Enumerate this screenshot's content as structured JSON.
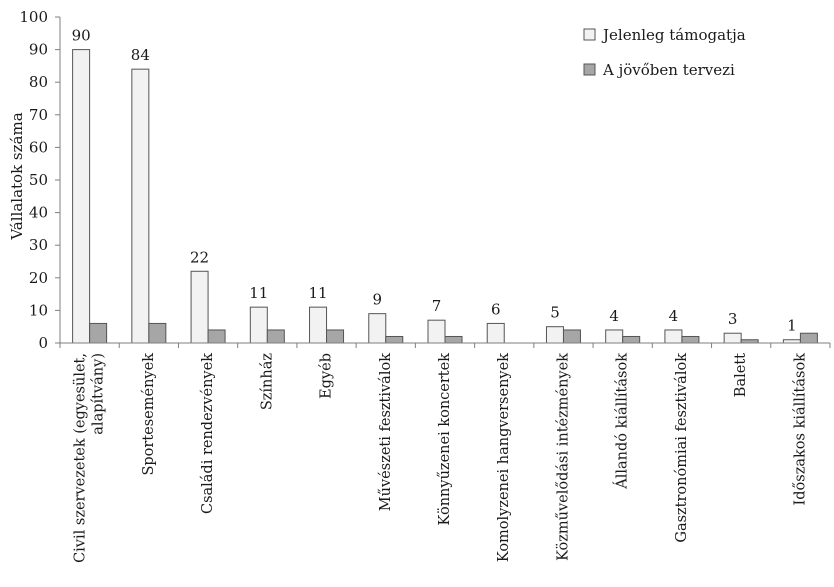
{
  "chart_data": {
    "type": "bar",
    "ylabel": "Vállalatok száma",
    "xlabel": "",
    "ylim": [
      0,
      100
    ],
    "yticks": [
      0,
      10,
      20,
      30,
      40,
      50,
      60,
      70,
      80,
      90,
      100
    ],
    "grid": false,
    "legend_position": "top-right",
    "categories": [
      [
        "Civil szervezetek (egyesület,",
        "alapítvány)"
      ],
      [
        "Sportesemények"
      ],
      [
        "Családi rendezvények"
      ],
      [
        "Színház"
      ],
      [
        "Egyéb"
      ],
      [
        "Művészeti fesztiválok"
      ],
      [
        "Könnyűzenei koncertek"
      ],
      [
        "Komolyzenei hangversenyek"
      ],
      [
        "Közművelődási intézmények"
      ],
      [
        "Állandó kiállítások"
      ],
      [
        "Gasztronómiai fesztiválok"
      ],
      [
        "Balett"
      ],
      [
        "Időszakos kiállítások"
      ]
    ],
    "series": [
      {
        "name": "Jelenleg támogatja",
        "color": "#f2f2f2",
        "values": [
          90,
          84,
          22,
          11,
          11,
          9,
          7,
          6,
          5,
          4,
          4,
          3,
          1
        ],
        "show_labels": true
      },
      {
        "name": "A jövőben tervezi",
        "color": "#a6a6a6",
        "values": [
          6,
          6,
          4,
          4,
          4,
          2,
          2,
          0,
          4,
          2,
          2,
          1,
          3
        ],
        "show_labels": false
      }
    ]
  }
}
